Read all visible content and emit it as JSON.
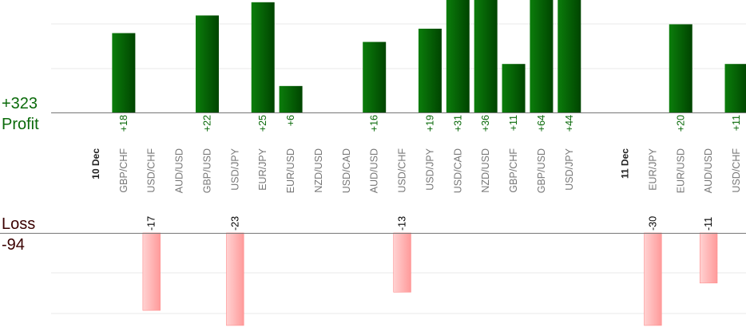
{
  "summary": {
    "profit_total": "+323",
    "profit_label": "Profit",
    "loss_label": "Loss",
    "loss_total": "-94"
  },
  "colors": {
    "profit_bar_light": "#0b7d0b",
    "profit_bar_dark": "#004400",
    "profit_text": "#0a6a0a",
    "loss_bar_light": "#ffd2d2",
    "loss_bar_dark": "#ff9a9a",
    "loss_text": "#3a0000",
    "grid": "#e8e8e8",
    "baseline": "#777777",
    "axis_text": "#777777",
    "date_text": "#222222"
  },
  "chart_data": {
    "type": "bar",
    "scale": "linear",
    "grid": true,
    "profit_visible_max": 25,
    "loss_visible_min": -20,
    "categories": [
      {
        "label": "10 Dec",
        "kind": "date"
      },
      {
        "label": "GBP/CHF",
        "kind": "pair",
        "value": 18
      },
      {
        "label": "USD/CHF",
        "kind": "pair",
        "value": -17
      },
      {
        "label": "AUD/USD",
        "kind": "pair",
        "value": 0
      },
      {
        "label": "GBP/USD",
        "kind": "pair",
        "value": 22
      },
      {
        "label": "USD/JPY",
        "kind": "pair",
        "value": -23
      },
      {
        "label": "EUR/JPY",
        "kind": "pair",
        "value": 25
      },
      {
        "label": "EUR/USD",
        "kind": "pair",
        "value": 6
      },
      {
        "label": "NZD/USD",
        "kind": "pair",
        "value": 0
      },
      {
        "label": "USD/CAD",
        "kind": "pair",
        "value": 0
      },
      {
        "label": "AUD/USD",
        "kind": "pair",
        "value": 16
      },
      {
        "label": "USD/CHF",
        "kind": "pair",
        "value": -13
      },
      {
        "label": "USD/JPY",
        "kind": "pair",
        "value": 19
      },
      {
        "label": "USD/CAD",
        "kind": "pair",
        "value": 31
      },
      {
        "label": "NZD/USD",
        "kind": "pair",
        "value": 36
      },
      {
        "label": "GBP/CHF",
        "kind": "pair",
        "value": 11
      },
      {
        "label": "GBP/USD",
        "kind": "pair",
        "value": 64
      },
      {
        "label": "USD/JPY",
        "kind": "pair",
        "value": 44
      },
      {
        "label": "",
        "kind": "gap"
      },
      {
        "label": "11 Dec",
        "kind": "date"
      },
      {
        "label": "EUR/JPY",
        "kind": "pair",
        "value": -30
      },
      {
        "label": "EUR/USD",
        "kind": "pair",
        "value": 20
      },
      {
        "label": "AUD/USD",
        "kind": "pair",
        "value": -11
      },
      {
        "label": "USD/CHF",
        "kind": "pair",
        "value": 11
      }
    ],
    "data_labels": [
      "+18",
      "-17",
      "+22",
      "-23",
      "+25",
      "+6",
      "+16",
      "-13",
      "+19",
      "+31",
      "+36",
      "+11",
      "+64",
      "+44",
      "-30",
      "+20",
      "-11",
      "+11"
    ]
  }
}
